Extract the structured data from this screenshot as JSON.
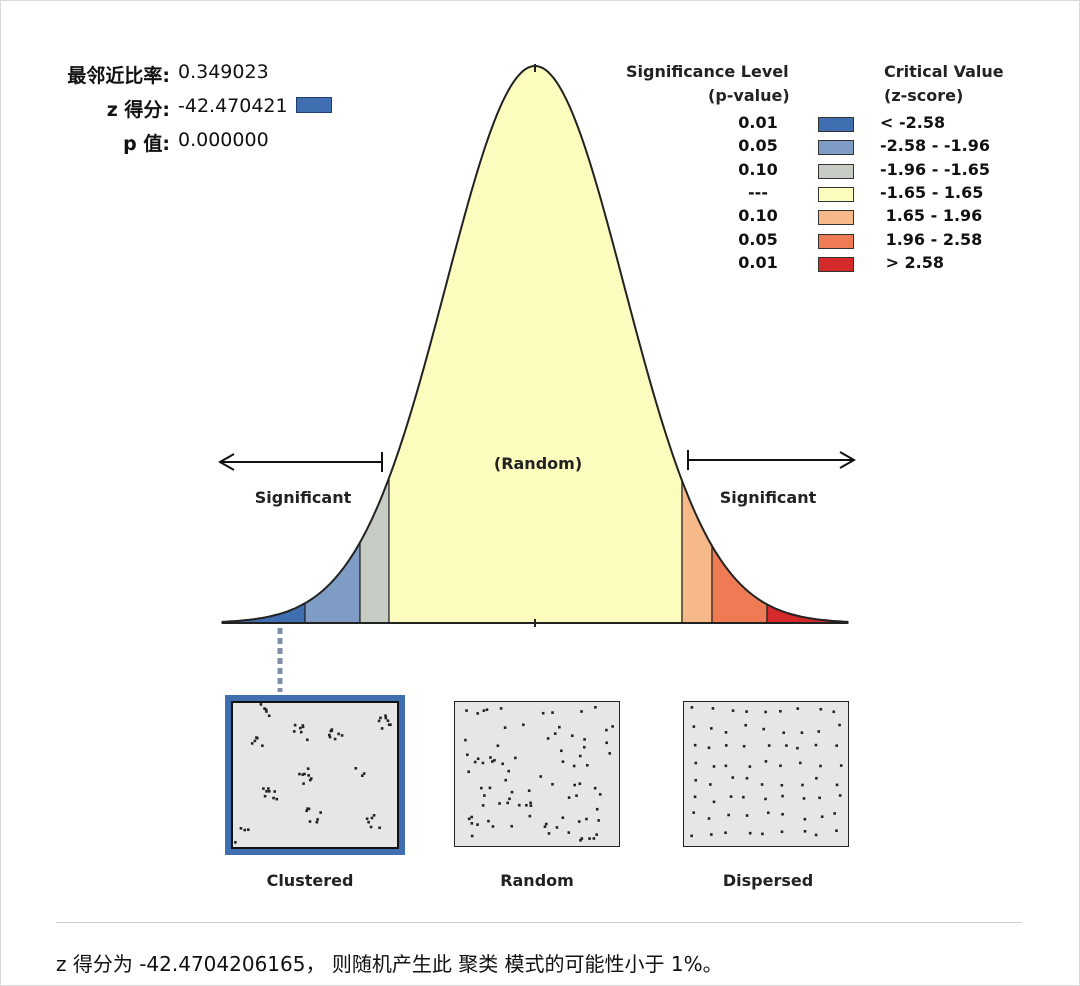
{
  "stats": {
    "ratio_label": "最邻近比率:",
    "ratio_value": "0.349023",
    "z_label": "z 得分:",
    "z_value": "-42.470421",
    "p_label": "p 值:",
    "p_value": "0.000000"
  },
  "legend": {
    "sig_header_1": "Significance Level",
    "sig_header_2": "(p-value)",
    "crit_header_1": "Critical Value",
    "crit_header_2": "(z-score)",
    "rows": [
      {
        "p": "0.01",
        "z": "< -2.58",
        "color": "#3f6fb0"
      },
      {
        "p": "0.05",
        "z": "-2.58 - -1.96",
        "color": "#7f9cc4"
      },
      {
        "p": "0.10",
        "z": "-1.96 - -1.65",
        "color": "#c6ccc3"
      },
      {
        "p": "---",
        "z": "-1.65 - 1.65",
        "color": "#fdfcbf"
      },
      {
        "p": "0.10",
        "z": " 1.65 - 1.96",
        "color": "#f7b98a"
      },
      {
        "p": "0.05",
        "z": " 1.96 - 2.58",
        "color": "#ee7b54"
      },
      {
        "p": "0.01",
        "z": " > 2.58",
        "color": "#d6292b"
      }
    ]
  },
  "curve": {
    "random_label": "(Random)",
    "left_label": "Significant",
    "right_label": "Significant"
  },
  "patterns": {
    "clustered_caption": "Clustered",
    "random_caption": "Random",
    "dispersed_caption": "Dispersed",
    "selected": "Clustered"
  },
  "summary": "z 得分为 -42.4704206165， 则随机产生此 聚类 模式的可能性小于 1%。"
}
